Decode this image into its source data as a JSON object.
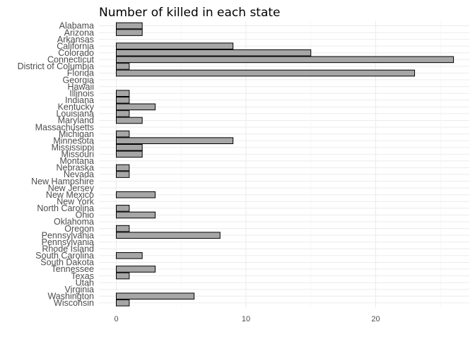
{
  "chart_data": {
    "type": "bar",
    "orientation": "horizontal",
    "title": "Number of killed in each state",
    "xlabel": "",
    "ylabel": "",
    "xlim": [
      0,
      26
    ],
    "xticks": [
      0,
      10,
      20
    ],
    "grid": true,
    "bar_fill": "#a6a6a6",
    "bar_stroke": "#000000",
    "categories": [
      "Alabama",
      "Arizona",
      "Arkansas",
      "California",
      "Colorado",
      "Connecticut",
      "District of Columbia",
      "Florida",
      "Georgia",
      "Hawaii",
      "Illinois",
      "Indiana",
      "Kentucky",
      "Louisiana",
      "Maryland",
      "Massachusetts",
      "Michigan",
      "Minnesota",
      "Mississippi",
      "Missouri",
      "Montana",
      "Nebraska",
      "Nevada",
      "New Hampshire",
      "New Jersey",
      "New Mexico",
      "New York",
      "North Carolina",
      "Ohio",
      "Oklahoma",
      "Oregon",
      "Pennsylvania",
      "Pennsylvania ",
      "Rhode Island",
      "South Carolina",
      "South Dakota",
      "Tennessee",
      "Texas",
      "Utah",
      "Virginia",
      "Washington",
      "Wisconsin"
    ],
    "values": [
      2,
      2,
      0,
      9,
      15,
      26,
      1,
      23,
      0,
      0,
      1,
      1,
      3,
      1,
      2,
      0,
      1,
      9,
      2,
      2,
      0,
      1,
      1,
      0,
      0,
      3,
      0,
      1,
      3,
      0,
      1,
      8,
      0,
      0,
      2,
      0,
      3,
      1,
      0,
      0,
      6,
      1
    ]
  }
}
